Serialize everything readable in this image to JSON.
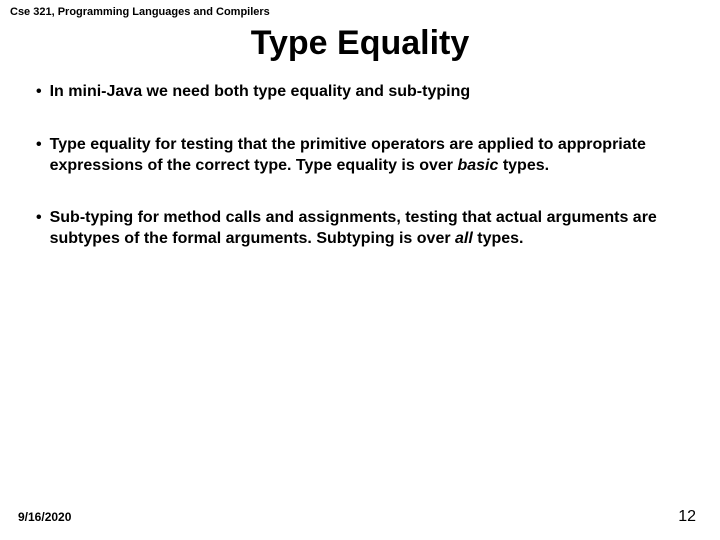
{
  "course_header": "Cse 321, Programming Languages and Compilers",
  "title": "Type Equality",
  "bullets": [
    {
      "plain": "In mini-Java we need both type equality and sub-typing"
    },
    {
      "pre": "Type equality for testing that the primitive operators are applied to appropriate expressions of the correct type. Type equality is over ",
      "em": "basic",
      "post": " types."
    },
    {
      "pre": "Sub-typing for method calls and assignments, testing that actual arguments are subtypes of the formal arguments. Subtyping is over ",
      "em": "all",
      "post": " types."
    }
  ],
  "footer": {
    "date": "9/16/2020",
    "page": "12"
  },
  "colors": {
    "background": "#ffffff",
    "text": "#000000"
  },
  "typography": {
    "title_fontsize": 34,
    "body_fontsize": 16,
    "header_fontsize": 11,
    "footer_date_fontsize": 12,
    "footer_page_fontsize": 16,
    "font_family": "Arial"
  }
}
